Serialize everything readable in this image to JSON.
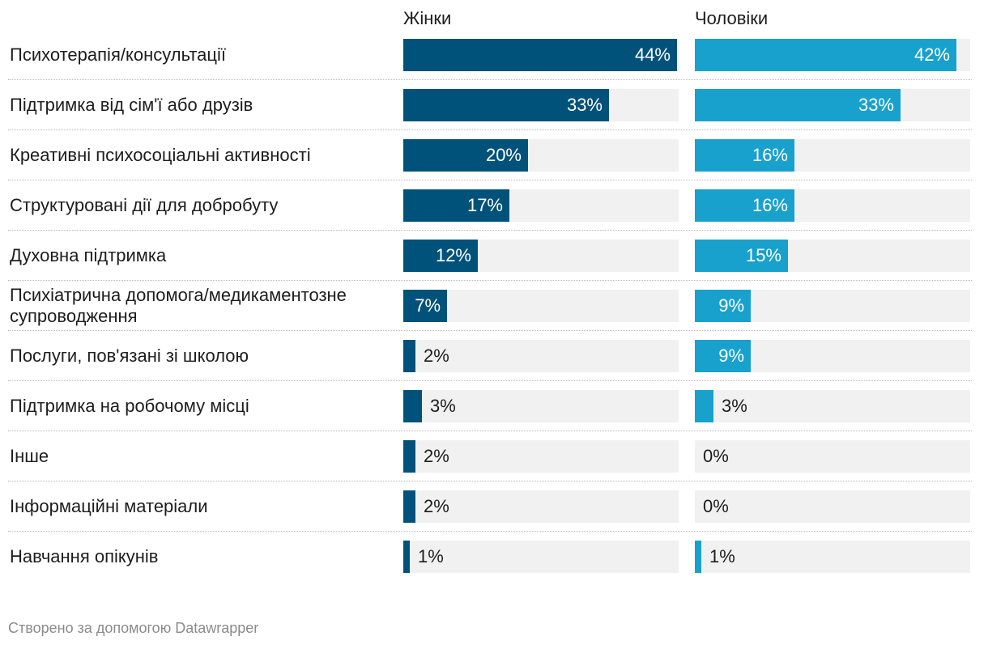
{
  "chart_data": {
    "type": "bar",
    "orientation": "horizontal",
    "categories": [
      "Психотерапія/консультації",
      "Підтримка від сім'ї або друзів",
      "Креативні психосоціальні активності",
      "Структуровані дії для добробуту",
      "Духовна підтримка",
      "Психіатрична допомога/медикаментозне супроводження",
      "Послуги, пов'язані зі школою",
      "Підтримка на робочому місці",
      "Інше",
      "Інформаційні матеріали",
      "Навчання опікунів"
    ],
    "series": [
      {
        "name": "Жінки",
        "color": "#00527a",
        "values": [
          44,
          33,
          20,
          17,
          12,
          7,
          2,
          3,
          2,
          2,
          1
        ],
        "labels": [
          "44%",
          "33%",
          "20%",
          "17%",
          "12%",
          "7%",
          "2%",
          "3%",
          "2%",
          "2%",
          "1%"
        ]
      },
      {
        "name": "Чоловіки",
        "color": "#18a1cd",
        "values": [
          42,
          33,
          16,
          16,
          15,
          9,
          9,
          3,
          0,
          0,
          1
        ],
        "labels": [
          "42%",
          "33%",
          "16%",
          "16%",
          "15%",
          "9%",
          "9%",
          "3%",
          "0%",
          "0%",
          "1%"
        ]
      }
    ],
    "xlim": [
      0,
      44
    ],
    "track_color": "#f1f1f1",
    "grid": false,
    "legend": "column-headers-top"
  },
  "footer": "Створено за допомогою Datawrapper"
}
